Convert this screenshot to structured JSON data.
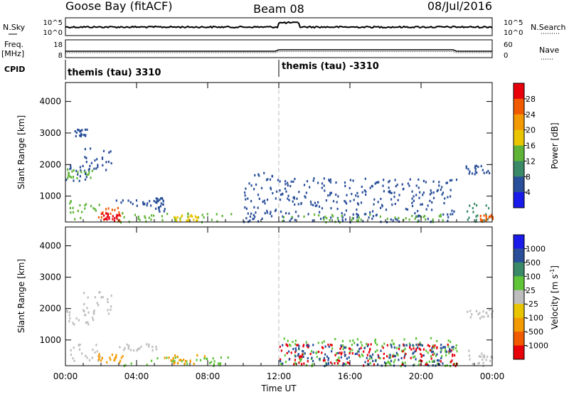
{
  "header": {
    "station": "Goose Bay (fitACF)",
    "beam": "Beam 08",
    "date": "08/Jul/2016"
  },
  "top_panels": {
    "noise_left_label": "N.Sky",
    "noise_right_label": "N.Search",
    "noise_ticks": [
      "10^5",
      "10^0"
    ],
    "freq_left_label_1": "Freq.",
    "freq_left_label_2": "[MHz]",
    "freq_ticks_left": [
      "18",
      "8"
    ],
    "freq_ticks_right": [
      "60",
      "0"
    ],
    "nave_label": "Nave",
    "cpid_label": "CPID",
    "cpid_segments": [
      {
        "label": "themis (tau) 3310",
        "start_hour": 0
      },
      {
        "label": "themis (tau) -3310",
        "start_hour": 12
      }
    ]
  },
  "chart_data": [
    {
      "type": "heatmap",
      "name": "power",
      "ylabel": "Slant Range [km]",
      "yticks": [
        1000,
        2000,
        3000,
        4000
      ],
      "ylim": [
        180,
        4600
      ],
      "xlim": [
        0,
        24
      ],
      "colorbar": {
        "label": "Power [dB]",
        "ticks": [
          "28",
          "24",
          "20",
          "16",
          "12",
          "8",
          "4"
        ],
        "colors": [
          "#e8000b",
          "#f25a00",
          "#f39a00",
          "#e9c500",
          "#5fb437",
          "#3a8a68",
          "#2a4f9a",
          "#1a1aeb"
        ]
      },
      "scatter_regions": [
        {
          "hours": [
            0.0,
            1.6
          ],
          "range_km": [
            1500,
            2000
          ],
          "color": "#2a4f9a"
        },
        {
          "hours": [
            0.0,
            1.5
          ],
          "range_km": [
            1600,
            1900
          ],
          "color": "#5fb437"
        },
        {
          "hours": [
            1.0,
            2.6
          ],
          "range_km": [
            1850,
            2600
          ],
          "color": "#2a4f9a"
        },
        {
          "hours": [
            0.5,
            1.2
          ],
          "range_km": [
            2900,
            3150
          ],
          "color": "#2a4f9a"
        },
        {
          "hours": [
            0.2,
            2.0
          ],
          "range_km": [
            300,
            900
          ],
          "color": "#5fb437"
        },
        {
          "hours": [
            1.8,
            3.2
          ],
          "range_km": [
            200,
            700
          ],
          "color": "#f25a00"
        },
        {
          "hours": [
            2.0,
            3.0
          ],
          "range_km": [
            250,
            500
          ],
          "color": "#e8000b"
        },
        {
          "hours": [
            2.8,
            5.2
          ],
          "range_km": [
            700,
            900
          ],
          "color": "#2a4f9a"
        },
        {
          "hours": [
            5.0,
            5.6
          ],
          "range_km": [
            500,
            1000
          ],
          "color": "#2a4f9a"
        },
        {
          "hours": [
            3.0,
            9.5
          ],
          "range_km": [
            200,
            500
          ],
          "color": "#5fb437"
        },
        {
          "hours": [
            6.0,
            7.5
          ],
          "range_km": [
            250,
            450
          ],
          "color": "#e9c500"
        },
        {
          "hours": [
            10.0,
            12.0
          ],
          "range_km": [
            200,
            1800
          ],
          "color": "#2a4f9a"
        },
        {
          "hours": [
            12.0,
            22.0
          ],
          "range_km": [
            200,
            1600
          ],
          "color": "#2a4f9a"
        },
        {
          "hours": [
            12.0,
            22.0
          ],
          "range_km": [
            200,
            450
          ],
          "color": "#5fb437"
        },
        {
          "hours": [
            22.5,
            24.0
          ],
          "range_km": [
            1700,
            2000
          ],
          "color": "#2a4f9a"
        },
        {
          "hours": [
            22.5,
            24.0
          ],
          "range_km": [
            200,
            800
          ],
          "color": "#3a8a68"
        },
        {
          "hours": [
            23.3,
            24.0
          ],
          "range_km": [
            200,
            450
          ],
          "color": "#f25a00"
        }
      ]
    },
    {
      "type": "heatmap",
      "name": "velocity",
      "ylabel": "Slant Range [km]",
      "xlabel": "Time UT",
      "xticks": [
        "00:00",
        "04:00",
        "08:00",
        "12:00",
        "16:00",
        "20:00",
        "00:00"
      ],
      "yticks": [
        1000,
        2000,
        3000,
        4000
      ],
      "ylim": [
        180,
        4600
      ],
      "xlim": [
        0,
        24
      ],
      "colorbar": {
        "label": "Velocity [m s-1]",
        "ticks": [
          "1000",
          "500",
          "100",
          "25",
          "-25",
          "-100",
          "-500",
          "-1000"
        ],
        "colors": [
          "#1a1aeb",
          "#2a4f9a",
          "#3a8a68",
          "#5fc437",
          "#bdbdbd",
          "#e9c500",
          "#f39a00",
          "#f25a00",
          "#e8000b"
        ]
      },
      "scatter_regions": [
        {
          "hours": [
            0.0,
            1.6
          ],
          "range_km": [
            1500,
            2000
          ],
          "color": "#bdbdbd"
        },
        {
          "hours": [
            1.0,
            2.6
          ],
          "range_km": [
            1850,
            2600
          ],
          "color": "#bdbdbd"
        },
        {
          "hours": [
            0.2,
            2.0
          ],
          "range_km": [
            300,
            900
          ],
          "color": "#bdbdbd"
        },
        {
          "hours": [
            1.8,
            3.2
          ],
          "range_km": [
            300,
            600
          ],
          "color": "#f39a00"
        },
        {
          "hours": [
            2.8,
            5.2
          ],
          "range_km": [
            700,
            900
          ],
          "color": "#bdbdbd"
        },
        {
          "hours": [
            3.0,
            9.5
          ],
          "range_km": [
            200,
            500
          ],
          "color": "#5fc437"
        },
        {
          "hours": [
            5.5,
            7.8
          ],
          "range_km": [
            250,
            550
          ],
          "color": "#f39a00"
        },
        {
          "hours": [
            12.0,
            22.0
          ],
          "range_km": [
            200,
            1100
          ],
          "color": "#5fc437"
        },
        {
          "hours": [
            12.0,
            22.0
          ],
          "range_km": [
            200,
            900
          ],
          "color": "#e8000b"
        },
        {
          "hours": [
            12.0,
            22.0
          ],
          "range_km": [
            200,
            900
          ],
          "color": "#2a4f9a"
        },
        {
          "hours": [
            22.5,
            24.0
          ],
          "range_km": [
            1700,
            2000
          ],
          "color": "#bdbdbd"
        },
        {
          "hours": [
            22.5,
            24.0
          ],
          "range_km": [
            200,
            700
          ],
          "color": "#bdbdbd"
        }
      ]
    }
  ]
}
